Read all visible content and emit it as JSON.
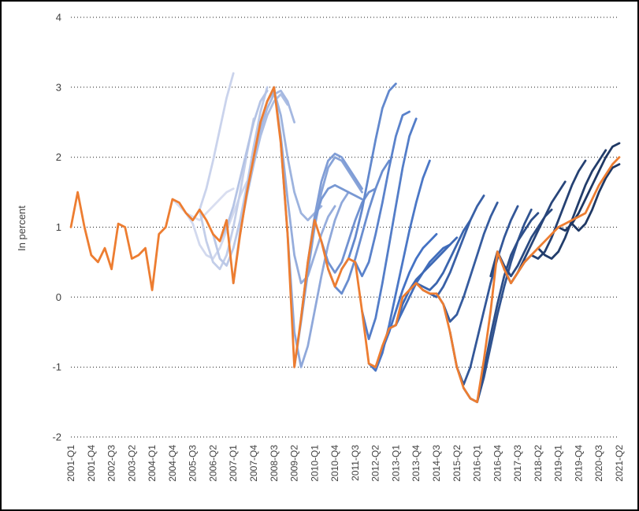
{
  "chart_data": {
    "type": "line",
    "title": "",
    "ylabel": "In percent",
    "ylim": [
      -2,
      4
    ],
    "y_ticks": [
      4,
      3,
      2,
      1,
      0,
      -1,
      -2
    ],
    "n_quarters": 82,
    "x_tick_step": 3,
    "grid": "dotted-horizontal",
    "legend": "none",
    "x_tick_labels": [
      "2001-Q1",
      "2001-Q4",
      "2002-Q3",
      "2003-Q2",
      "2004-Q1",
      "2004-Q4",
      "2005-Q3",
      "2006-Q2",
      "2007-Q1",
      "2007-Q4",
      "2008-Q3",
      "2009-Q2",
      "2010-Q1",
      "2010-Q4",
      "2011-Q3",
      "2012-Q2",
      "2013-Q1",
      "2013-Q4",
      "2014-Q3",
      "2015-Q2",
      "2016-Q1",
      "2016-Q4",
      "2017-Q3",
      "2018-Q2",
      "2019-Q1",
      "2019-Q4",
      "2020-Q3",
      "2021-Q2"
    ],
    "actual": {
      "color": "#ED7D31",
      "start": 0,
      "values": [
        1.0,
        1.5,
        1.0,
        0.6,
        0.5,
        0.7,
        0.4,
        1.05,
        1.0,
        0.55,
        0.6,
        0.7,
        0.1,
        0.9,
        1.0,
        1.4,
        1.35,
        1.2,
        1.1,
        1.25,
        1.1,
        0.9,
        0.8,
        1.1,
        0.2,
        0.9,
        1.5,
        2.0,
        2.5,
        2.8,
        3.0,
        2.2,
        0.9,
        -1.0,
        -0.3,
        0.5,
        1.1,
        0.8,
        0.4,
        0.15,
        0.4,
        0.55,
        0.5,
        -0.2,
        -0.95,
        -1.0,
        -0.7,
        -0.45,
        -0.4,
        0.0,
        0.1,
        0.2,
        0.1,
        0.05,
        0.05,
        -0.1,
        -0.5,
        -1.0,
        -1.3,
        -1.45,
        -1.5,
        -0.9,
        -0.2,
        0.65,
        0.4,
        0.2,
        0.35,
        0.5,
        0.6,
        0.7,
        0.8,
        0.9,
        1.0,
        1.05,
        1.1,
        1.15,
        1.2,
        1.4,
        1.6,
        1.75,
        1.9,
        2.0
      ]
    },
    "forecasts": [
      {
        "start": 15,
        "color": "#D9DEF0",
        "values": [
          1.4,
          1.3,
          1.2,
          1.15,
          1.1,
          1.2,
          1.3,
          1.4,
          1.5,
          1.55
        ]
      },
      {
        "start": 17,
        "color": "#D2D9EE",
        "values": [
          1.2,
          1.05,
          0.75,
          0.6,
          0.55,
          0.7,
          0.95,
          1.2,
          1.45,
          1.65
        ]
      },
      {
        "start": 18,
        "color": "#CAD3EC",
        "values": [
          1.1,
          1.25,
          1.55,
          1.95,
          2.4,
          2.85,
          3.2
        ]
      },
      {
        "start": 19,
        "color": "#C3CEE9",
        "values": [
          1.25,
          0.8,
          0.5,
          0.4,
          0.6,
          1.0,
          1.5,
          2.05,
          2.55
        ]
      },
      {
        "start": 21,
        "color": "#BBC8E7",
        "values": [
          0.9,
          0.55,
          0.45,
          0.7,
          1.1,
          1.6,
          2.15,
          2.65,
          3.0
        ]
      },
      {
        "start": 22,
        "color": "#B4C3E5",
        "values": [
          0.8,
          1.0,
          1.3,
          1.7,
          2.1,
          2.5,
          2.8,
          2.95
        ]
      },
      {
        "start": 24,
        "color": "#ACBEE3",
        "values": [
          0.2,
          0.95,
          1.45,
          1.9,
          2.3,
          2.6,
          2.8,
          2.9,
          2.75
        ]
      },
      {
        "start": 25,
        "color": "#A5B8E1",
        "values": [
          0.9,
          1.5,
          2.0,
          2.4,
          2.7,
          2.9,
          2.95,
          2.8,
          2.5
        ]
      },
      {
        "start": 27,
        "color": "#9DB3DE",
        "values": [
          2.0,
          2.5,
          2.8,
          2.95,
          2.6,
          2.0,
          1.5,
          1.2,
          1.1,
          1.2,
          1.3
        ]
      },
      {
        "start": 29,
        "color": "#96ADDC",
        "values": [
          2.8,
          3.0,
          2.3,
          1.4,
          0.6,
          0.2,
          0.3,
          0.6,
          0.9,
          1.15,
          1.3
        ]
      },
      {
        "start": 31,
        "color": "#8FA8DA",
        "values": [
          2.2,
          0.9,
          -0.5,
          -1.0,
          -0.7,
          -0.2,
          0.3,
          0.75,
          1.1,
          1.35,
          1.5
        ]
      },
      {
        "start": 33,
        "color": "#87A3D8",
        "values": [
          -1.0,
          -0.35,
          0.35,
          1.0,
          1.5,
          1.85,
          2.0,
          1.95,
          1.8,
          1.65,
          1.5
        ]
      },
      {
        "start": 34,
        "color": "#809DD6",
        "values": [
          -0.3,
          0.5,
          1.15,
          1.65,
          1.95,
          2.05,
          2.0,
          1.85,
          1.7,
          1.55
        ]
      },
      {
        "start": 36,
        "color": "#7898D3",
        "values": [
          1.1,
          1.4,
          1.55,
          1.6,
          1.55,
          1.5,
          1.45,
          1.4
        ]
      },
      {
        "start": 37,
        "color": "#7192D1",
        "values": [
          0.8,
          0.5,
          0.35,
          0.5,
          0.8,
          1.1,
          1.35,
          1.5,
          1.55
        ]
      },
      {
        "start": 38,
        "color": "#698DCF",
        "values": [
          0.4,
          0.15,
          0.05,
          0.25,
          0.55,
          0.9,
          1.25,
          1.55,
          1.8,
          1.95
        ]
      },
      {
        "start": 40,
        "color": "#6288CD",
        "values": [
          0.4,
          0.55,
          0.85,
          1.25,
          1.75,
          2.25,
          2.7,
          2.95,
          3.05
        ]
      },
      {
        "start": 42,
        "color": "#5A82CB",
        "values": [
          0.5,
          0.3,
          0.5,
          0.9,
          1.35,
          1.85,
          2.3,
          2.6,
          2.65
        ]
      },
      {
        "start": 43,
        "color": "#537DC8",
        "values": [
          -0.2,
          -0.6,
          -0.3,
          0.2,
          0.75,
          1.3,
          1.85,
          2.3,
          2.55
        ]
      },
      {
        "start": 44,
        "color": "#4B77C6",
        "values": [
          -0.95,
          -1.05,
          -0.8,
          -0.4,
          0.05,
          0.5,
          0.95,
          1.35,
          1.7,
          1.95
        ]
      },
      {
        "start": 45,
        "color": "#4472C4",
        "values": [
          -1.0,
          -0.75,
          -0.5,
          -0.2,
          0.1,
          0.35,
          0.55,
          0.7,
          0.8,
          0.9
        ]
      },
      {
        "start": 47,
        "color": "#416EBD",
        "values": [
          -0.45,
          -0.4,
          -0.2,
          0.0,
          0.2,
          0.35,
          0.5,
          0.6,
          0.7,
          0.75
        ]
      },
      {
        "start": 48,
        "color": "#3E69B5",
        "values": [
          -0.4,
          -0.1,
          0.1,
          0.25,
          0.35,
          0.45,
          0.55,
          0.65,
          0.75,
          0.85
        ]
      },
      {
        "start": 50,
        "color": "#3B65AE",
        "values": [
          0.1,
          0.2,
          0.15,
          0.1,
          0.2,
          0.35,
          0.55,
          0.75,
          0.95,
          1.1
        ]
      },
      {
        "start": 52,
        "color": "#3960A6",
        "values": [
          0.1,
          0.05,
          0.0,
          0.15,
          0.35,
          0.6,
          0.85,
          1.1,
          1.3,
          1.45
        ]
      },
      {
        "start": 54,
        "color": "#365C9F",
        "values": [
          0.05,
          -0.1,
          -0.35,
          -0.25,
          0.0,
          0.3,
          0.6,
          0.9,
          1.15,
          1.35
        ]
      },
      {
        "start": 56,
        "color": "#335798",
        "values": [
          -0.5,
          -1.0,
          -1.25,
          -1.0,
          -0.6,
          -0.2,
          0.2,
          0.55,
          0.85,
          1.1,
          1.3
        ]
      },
      {
        "start": 58,
        "color": "#305390",
        "values": [
          -1.3,
          -1.45,
          -1.5,
          -1.15,
          -0.7,
          -0.25,
          0.15,
          0.5,
          0.8,
          1.05,
          1.25
        ]
      },
      {
        "start": 60,
        "color": "#2D4E89",
        "values": [
          -1.5,
          -1.05,
          -0.55,
          -0.1,
          0.3,
          0.6,
          0.8,
          0.95,
          1.1,
          1.2
        ]
      },
      {
        "start": 62,
        "color": "#2A4A82",
        "values": [
          0.3,
          0.65,
          0.45,
          0.3,
          0.45,
          0.65,
          0.85,
          1.0,
          1.15,
          1.25
        ]
      },
      {
        "start": 64,
        "color": "#28457A",
        "values": [
          0.4,
          0.2,
          0.35,
          0.55,
          0.75,
          0.95,
          1.15,
          1.35,
          1.5,
          1.65
        ]
      },
      {
        "start": 66,
        "color": "#254173",
        "values": [
          0.35,
          0.5,
          0.6,
          0.55,
          0.65,
          0.85,
          1.1,
          1.35,
          1.6,
          1.8,
          1.95
        ]
      },
      {
        "start": 69,
        "color": "#223D6B",
        "values": [
          0.7,
          0.6,
          0.55,
          0.65,
          0.85,
          1.1,
          1.35,
          1.6,
          1.8,
          1.95,
          2.1
        ]
      },
      {
        "start": 72,
        "color": "#1F3864",
        "values": [
          1.0,
          0.95,
          1.05,
          1.2,
          1.4,
          1.6,
          1.8,
          2.0,
          2.15,
          2.2
        ]
      },
      {
        "start": 74,
        "color": "#1F3864",
        "values": [
          1.05,
          0.95,
          1.05,
          1.25,
          1.5,
          1.7,
          1.85,
          1.9
        ]
      }
    ]
  }
}
